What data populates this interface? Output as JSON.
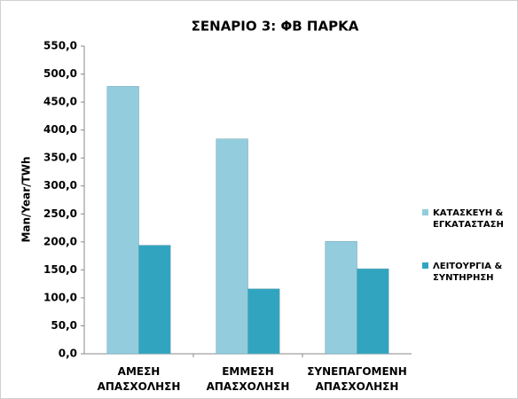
{
  "chart_data": {
    "type": "bar",
    "title": "ΣΕΝΑΡΙΟ 3: ΦΒ ΠΑΡΚΑ",
    "y_label": "Man/Year/TWh",
    "categories": [
      "ΑΜΕΣΗ ΑΠΑΣΧΟΛΗΣΗ",
      "ΕΜΜΕΣΗ ΑΠΑΣΧΟΛΗΣΗ",
      "ΣΥΝΕΠΑΓΟΜΕΝΗ ΑΠΑΣΧΟΛΗΣΗ"
    ],
    "series": [
      {
        "name": "ΚΑΤΑΣΚΕΥΗ & ΕΓΚΑΤΑΣΤΑΣΗ",
        "color": "#93cddd",
        "values": [
          478,
          384,
          201
        ]
      },
      {
        "name": "ΛΕΙΤΟΥΡΓΙΑ & ΣΥΝΤΗΡΗΣΗ",
        "color": "#31a5bf",
        "values": [
          194,
          116,
          152
        ]
      }
    ],
    "ylim": [
      0,
      550
    ],
    "yticks": [
      {
        "value": 0,
        "label": "0,0"
      },
      {
        "value": 50,
        "label": "50,0"
      },
      {
        "value": 100,
        "label": "100,0"
      },
      {
        "value": 150,
        "label": "150,0"
      },
      {
        "value": 200,
        "label": "200,0"
      },
      {
        "value": 250,
        "label": "250,0"
      },
      {
        "value": 300,
        "label": "300,0"
      },
      {
        "value": 350,
        "label": "350,0"
      },
      {
        "value": 400,
        "label": "400,0"
      },
      {
        "value": 450,
        "label": "450,0"
      },
      {
        "value": 500,
        "label": "500,0"
      },
      {
        "value": 550,
        "label": "550,0"
      }
    ],
    "legend": "right"
  }
}
